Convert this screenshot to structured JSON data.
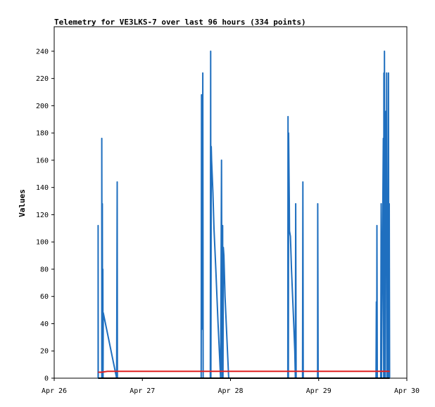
{
  "chart_data": {
    "type": "line",
    "title": "Telemetry for VE3LKS-7 over last 96 hours (334 points)",
    "xlabel": "",
    "ylabel": "Values",
    "x_tick_labels": [
      "Apr 26",
      "Apr 27",
      "Apr 28",
      "Apr 29",
      "Apr 30"
    ],
    "x_tick_values": [
      0,
      24,
      48,
      72,
      96
    ],
    "y_ticks": [
      0,
      20,
      40,
      60,
      80,
      100,
      120,
      140,
      160,
      180,
      200,
      220,
      240
    ],
    "xlim": [
      0,
      96
    ],
    "ylim": [
      0,
      258
    ],
    "grid": false,
    "series": [
      {
        "color": "#1f6fbf",
        "points": [
          [
            11.95,
            0
          ],
          [
            11.95,
            112
          ],
          [
            12.0,
            0
          ],
          [
            12.95,
            0
          ],
          [
            12.95,
            176
          ],
          [
            13.05,
            0
          ],
          [
            13.1,
            128
          ],
          [
            13.15,
            40
          ],
          [
            13.25,
            80
          ],
          [
            13.3,
            0
          ],
          [
            13.35,
            48
          ],
          [
            17.0,
            0
          ],
          [
            17.15,
            144
          ],
          [
            17.2,
            0
          ],
          [
            40.0,
            0
          ],
          [
            40.1,
            208
          ],
          [
            40.2,
            172
          ],
          [
            40.3,
            36
          ],
          [
            40.45,
            224
          ],
          [
            40.55,
            0
          ],
          [
            42.5,
            0
          ],
          [
            42.6,
            240
          ],
          [
            42.65,
            0
          ],
          [
            42.75,
            170
          ],
          [
            42.85,
            160
          ],
          [
            43.0,
            150
          ],
          [
            43.2,
            136
          ],
          [
            43.5,
            110
          ],
          [
            44.0,
            80
          ],
          [
            44.6,
            40
          ],
          [
            45.3,
            0
          ],
          [
            45.55,
            160
          ],
          [
            45.7,
            0
          ],
          [
            45.85,
            112
          ],
          [
            45.95,
            0
          ],
          [
            46.05,
            96
          ],
          [
            46.2,
            90
          ],
          [
            46.5,
            60
          ],
          [
            47.0,
            30
          ],
          [
            47.5,
            0
          ],
          [
            63.6,
            0
          ],
          [
            63.65,
            192
          ],
          [
            63.75,
            0
          ],
          [
            63.8,
            180
          ],
          [
            63.9,
            155
          ],
          [
            64.0,
            130
          ],
          [
            64.05,
            108
          ],
          [
            64.3,
            104
          ],
          [
            64.6,
            80
          ],
          [
            65.2,
            40
          ],
          [
            65.5,
            20
          ],
          [
            65.65,
            0
          ],
          [
            65.75,
            128
          ],
          [
            65.85,
            0
          ],
          [
            67.6,
            0
          ],
          [
            67.7,
            144
          ],
          [
            67.8,
            0
          ],
          [
            71.7,
            0
          ],
          [
            71.75,
            128
          ],
          [
            71.85,
            0
          ],
          [
            87.6,
            0
          ],
          [
            87.7,
            56
          ],
          [
            87.8,
            0
          ],
          [
            87.85,
            112
          ],
          [
            87.95,
            0
          ],
          [
            88.9,
            0
          ],
          [
            89.0,
            128
          ],
          [
            89.1,
            0
          ],
          [
            89.6,
            176
          ],
          [
            89.7,
            0
          ],
          [
            89.75,
            224
          ],
          [
            89.85,
            0
          ],
          [
            89.9,
            240
          ],
          [
            90.0,
            28
          ],
          [
            90.1,
            0
          ],
          [
            90.3,
            196
          ],
          [
            90.35,
            140
          ],
          [
            90.45,
            84
          ],
          [
            90.5,
            224
          ],
          [
            90.6,
            0
          ],
          [
            90.7,
            28
          ],
          [
            90.8,
            0
          ],
          [
            91.0,
            224
          ],
          [
            91.1,
            0
          ],
          [
            91.2,
            128
          ],
          [
            91.3,
            0
          ]
        ]
      },
      {
        "color": "#e02020",
        "points": [
          [
            11.95,
            4.4
          ],
          [
            13.0,
            4.4
          ],
          [
            14.5,
            5
          ],
          [
            40.0,
            5
          ],
          [
            60.0,
            5
          ],
          [
            91.35,
            5
          ]
        ]
      },
      {
        "color": "#000000",
        "points": [
          [
            11.95,
            0
          ],
          [
            91.35,
            0
          ]
        ]
      }
    ]
  }
}
